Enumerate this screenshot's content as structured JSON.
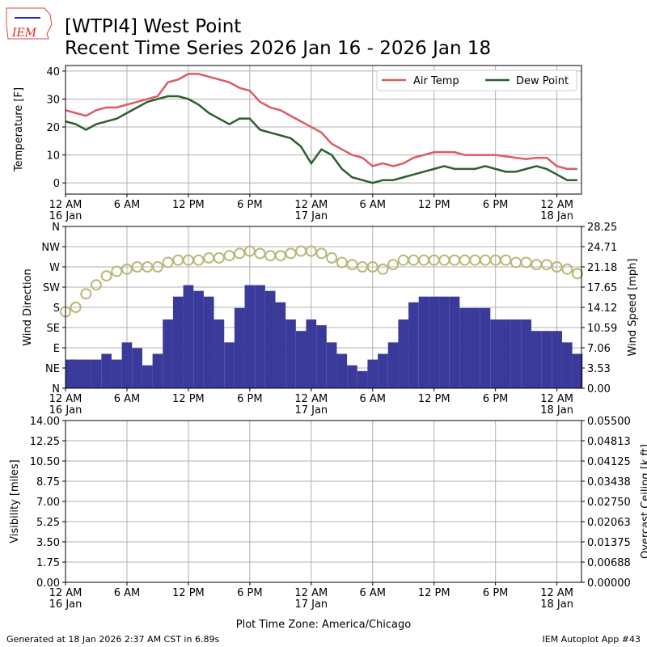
{
  "header": {
    "logo_text": "IEM",
    "title_line1": "[WTPI4] West Point",
    "title_line2": "Recent Time Series 2026 Jan 16 - 2026 Jan 18"
  },
  "footer": {
    "generated": "Generated at 18 Jan 2026 2:37 AM CST in 6.89s",
    "app": "IEM Autoplot App #43"
  },
  "colors": {
    "air_temp": "#dc5c62",
    "dew_point": "#2d5f2e",
    "wind_speed": "#3a3a9a",
    "wind_dir": "#b8b87a",
    "ceiling_label": "#008000"
  },
  "chart_data": [
    {
      "type": "line",
      "ylabel": "Temperature [F]",
      "ylim": [
        -4,
        42
      ],
      "yticks": [
        "0",
        "10",
        "20",
        "30",
        "40"
      ],
      "grid": true,
      "legend": "top-right",
      "x_unit": "hours since 12 AM 16 Jan",
      "x": [
        0,
        1,
        2,
        3,
        4,
        5,
        6,
        7,
        8,
        9,
        10,
        11,
        12,
        13,
        14,
        15,
        16,
        17,
        18,
        19,
        20,
        21,
        22,
        23,
        24,
        25,
        26,
        27,
        28,
        29,
        30,
        31,
        32,
        33,
        34,
        35,
        36,
        37,
        38,
        39,
        40,
        41,
        42,
        43,
        44,
        45,
        46,
        47,
        48,
        49,
        50
      ],
      "series": [
        {
          "name": "Air Temp",
          "values": [
            26,
            25,
            24,
            26,
            27,
            27,
            28,
            29,
            30,
            31,
            36,
            37,
            39,
            39,
            38,
            37,
            36,
            34,
            33,
            29,
            27,
            26,
            24,
            22,
            20,
            18,
            14,
            12,
            10,
            9,
            6,
            7,
            6,
            7,
            9,
            10,
            11,
            11,
            11,
            10,
            10,
            10,
            10,
            9.5,
            9,
            8.5,
            9,
            9,
            6,
            5,
            5
          ]
        },
        {
          "name": "Dew Point",
          "values": [
            22,
            21,
            19,
            21,
            22,
            23,
            25,
            27,
            29,
            30,
            31,
            31,
            30,
            28,
            25,
            23,
            21,
            23,
            23,
            19,
            18,
            17,
            16,
            13,
            7,
            12,
            10,
            5,
            2,
            1,
            0,
            1,
            1,
            2,
            3,
            4,
            5,
            6,
            5,
            5,
            5,
            6,
            5,
            4,
            4,
            5,
            6,
            5,
            3,
            1,
            1
          ]
        }
      ]
    },
    {
      "type": "bar+scatter",
      "ylabel_left": "Wind Direction",
      "ylabel_right": "Wind Speed [mph]",
      "yticks_left": [
        "N",
        "NE",
        "E",
        "SE",
        "S",
        "SW",
        "W",
        "NW",
        "N"
      ],
      "ylim_left": [
        0,
        360
      ],
      "yticks_right": [
        "0.00",
        "3.53",
        "7.06",
        "10.59",
        "14.12",
        "17.65",
        "21.18",
        "24.71",
        "28.25"
      ],
      "ylim_right": [
        0,
        28.25
      ],
      "wind_speed_mph": [
        5,
        5,
        5,
        5,
        6,
        5,
        8,
        7,
        4,
        6,
        12,
        16,
        18,
        17,
        16,
        12,
        8,
        14,
        18,
        18,
        17,
        15,
        12,
        10,
        12,
        11,
        8,
        6,
        4,
        3,
        5,
        6,
        8,
        12,
        15,
        16,
        16,
        16,
        16,
        14,
        14,
        14,
        12,
        12,
        12,
        12,
        10,
        10,
        10,
        8,
        6
      ],
      "wind_dir_deg": [
        170,
        180,
        210,
        230,
        250,
        260,
        265,
        270,
        270,
        270,
        280,
        285,
        285,
        285,
        290,
        290,
        295,
        300,
        305,
        300,
        295,
        295,
        300,
        305,
        305,
        300,
        290,
        280,
        275,
        270,
        270,
        265,
        275,
        285,
        285,
        285,
        285,
        285,
        285,
        285,
        285,
        285,
        285,
        285,
        280,
        280,
        275,
        275,
        270,
        265,
        255
      ]
    },
    {
      "type": "line",
      "ylabel_left": "Visibility [miles]",
      "ylabel_right": "Overcast Ceiling [k ft]",
      "yticks_left": [
        "0.00",
        "1.75",
        "3.50",
        "5.25",
        "7.00",
        "8.75",
        "10.50",
        "12.25",
        "14.00"
      ],
      "ylim_left": [
        0,
        14
      ],
      "yticks_right": [
        "0.00000",
        "0.00688",
        "0.01375",
        "0.02063",
        "0.02750",
        "0.03438",
        "0.04125",
        "0.04813",
        "0.05500"
      ],
      "ylim_right": [
        0,
        0.055
      ],
      "xlabel": "Plot Time Zone: America/Chicago"
    }
  ],
  "xticks": [
    {
      "label": "12 AM",
      "sub": "16 Jan"
    },
    {
      "label": "6 AM",
      "sub": ""
    },
    {
      "label": "12 PM",
      "sub": ""
    },
    {
      "label": "6 PM",
      "sub": ""
    },
    {
      "label": "12 AM",
      "sub": "17 Jan"
    },
    {
      "label": "6 AM",
      "sub": ""
    },
    {
      "label": "12 PM",
      "sub": ""
    },
    {
      "label": "6 PM",
      "sub": ""
    },
    {
      "label": "12 AM",
      "sub": "18 Jan"
    }
  ]
}
